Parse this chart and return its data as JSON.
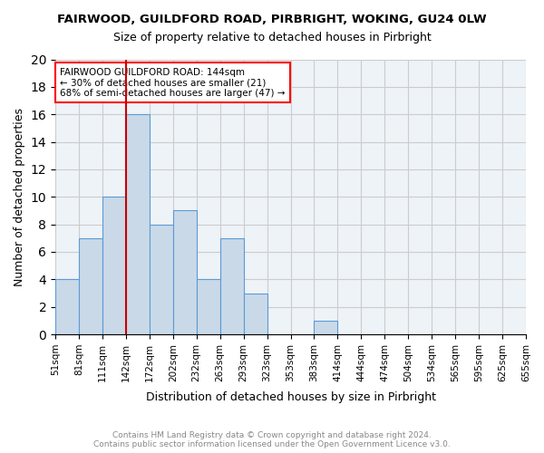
{
  "title1": "FAIRWOOD, GUILDFORD ROAD, PIRBRIGHT, WOKING, GU24 0LW",
  "title2": "Size of property relative to detached houses in Pirbright",
  "xlabel": "Distribution of detached houses by size in Pirbright",
  "ylabel": "Number of detached properties",
  "bin_labels": [
    "51sqm",
    "81sqm",
    "111sqm",
    "142sqm",
    "172sqm",
    "202sqm",
    "232sqm",
    "263sqm",
    "293sqm",
    "323sqm",
    "353sqm",
    "383sqm",
    "414sqm",
    "444sqm",
    "474sqm",
    "504sqm",
    "534sqm",
    "565sqm",
    "595sqm",
    "625sqm",
    "655sqm"
  ],
  "bar_values": [
    4,
    7,
    10,
    16,
    8,
    9,
    4,
    7,
    3,
    0,
    0,
    1,
    0,
    0,
    0,
    0,
    0,
    0,
    0,
    0
  ],
  "bar_color": "#c9d9e8",
  "bar_edge_color": "#5b9bd5",
  "red_line_bin_index": 3,
  "annotation_text": "FAIRWOOD GUILDFORD ROAD: 144sqm\n← 30% of detached houses are smaller (21)\n68% of semi-detached houses are larger (47) →",
  "annotation_box_color": "white",
  "annotation_box_edge_color": "red",
  "red_line_color": "#cc0000",
  "ylim": [
    0,
    20
  ],
  "yticks": [
    0,
    2,
    4,
    6,
    8,
    10,
    12,
    14,
    16,
    18,
    20
  ],
  "footer_text": "Contains HM Land Registry data © Crown copyright and database right 2024.\nContains public sector information licensed under the Open Government Licence v3.0.",
  "footer_color": "#888888",
  "grid_color": "#cccccc",
  "bg_color": "#eef3f8"
}
